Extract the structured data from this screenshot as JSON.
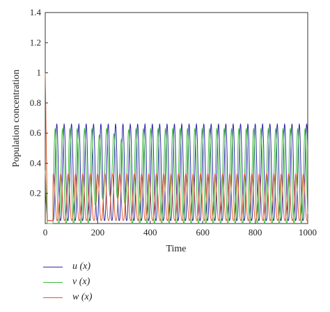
{
  "chart_data": {
    "type": "line",
    "title": "",
    "xlabel": "Time",
    "ylabel": "Population concentration",
    "xlim": [
      0,
      1000
    ],
    "ylim": [
      0,
      1.4
    ],
    "xticks": [
      "0",
      "200",
      "400",
      "600",
      "800",
      "1000"
    ],
    "yticks": [
      "0.2",
      "0.4",
      "0.6",
      "0.8",
      "1",
      "1.2",
      "1.4"
    ],
    "grid": false,
    "legend_position": "bottom-left",
    "period": 28,
    "series": [
      {
        "name": "u (x)",
        "color": "#2b2ba6",
        "initial": 0.22,
        "peak": 0.66,
        "trough": 0.02,
        "phase": 0.0
      },
      {
        "name": "v (x)",
        "color": "#3db83d",
        "initial": 0.35,
        "peak": 0.63,
        "trough": 0.0,
        "phase": 0.22
      },
      {
        "name": "w (x)",
        "color": "#e2562a",
        "initial": 1.0,
        "peak": 0.33,
        "trough": 0.02,
        "phase": 0.45
      }
    ]
  }
}
